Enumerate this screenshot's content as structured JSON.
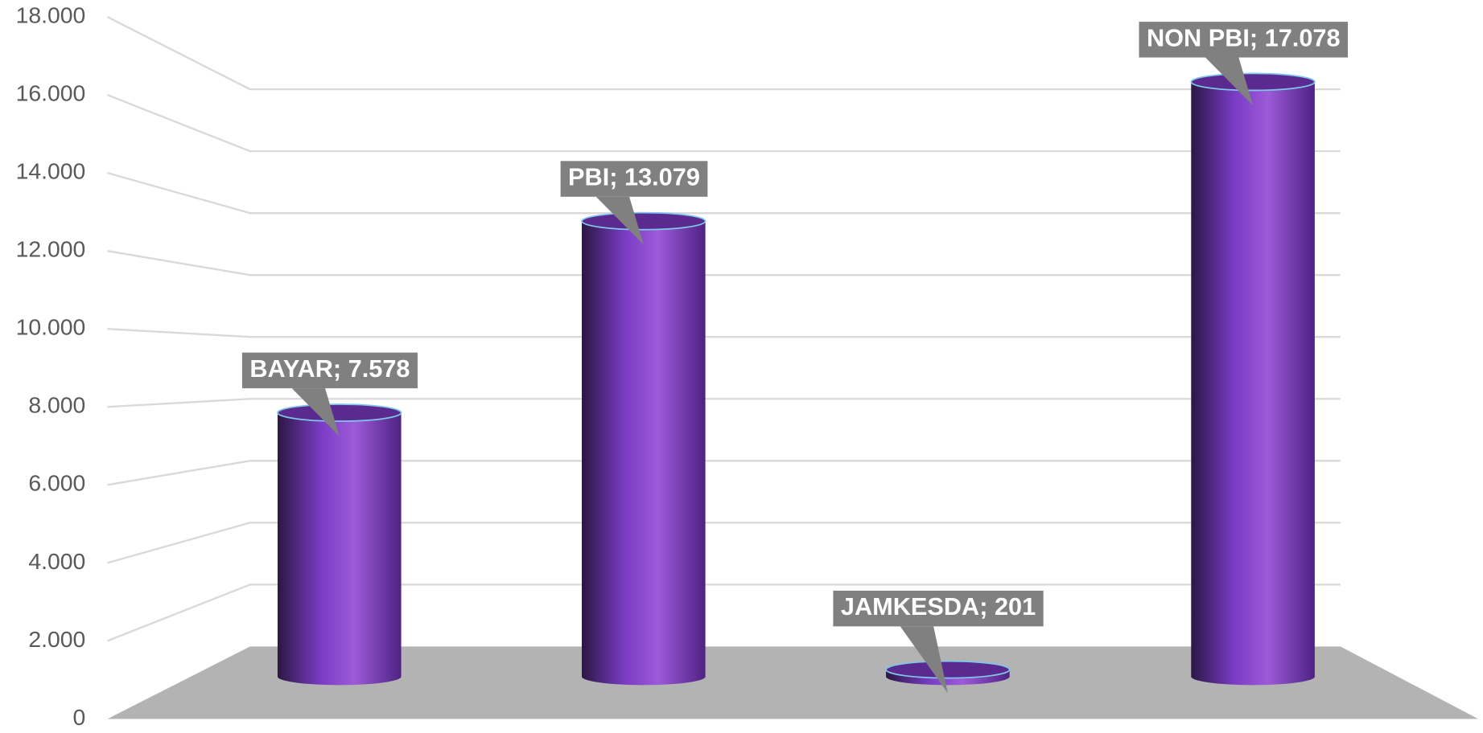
{
  "chart_data": {
    "type": "bar3d",
    "categories": [
      "BAYAR",
      "PBI",
      "JAMKESDA",
      "NON PBI"
    ],
    "values": [
      7578,
      13079,
      201,
      17078
    ],
    "value_labels": [
      "BAYAR; 7.578",
      "PBI; 13.079",
      "JAMKESDA; 201",
      "NON PBI; 17.078"
    ],
    "color": "#7b3fc0",
    "ylim": [
      0,
      18000
    ],
    "yticks": [
      0,
      {
        "value": 2000,
        "label": "2.000"
      },
      {
        "value": 4000,
        "label": "4.000"
      },
      {
        "value": 6000,
        "label": "6.000"
      },
      {
        "value": 8000,
        "label": "8.000"
      },
      {
        "value": 10000,
        "label": "10.000"
      },
      {
        "value": 12000,
        "label": "12.000"
      },
      {
        "value": 14000,
        "label": "14.000"
      },
      {
        "value": 16000,
        "label": "16.000"
      },
      {
        "value": 18000,
        "label": "18.000"
      }
    ],
    "grid": true
  }
}
